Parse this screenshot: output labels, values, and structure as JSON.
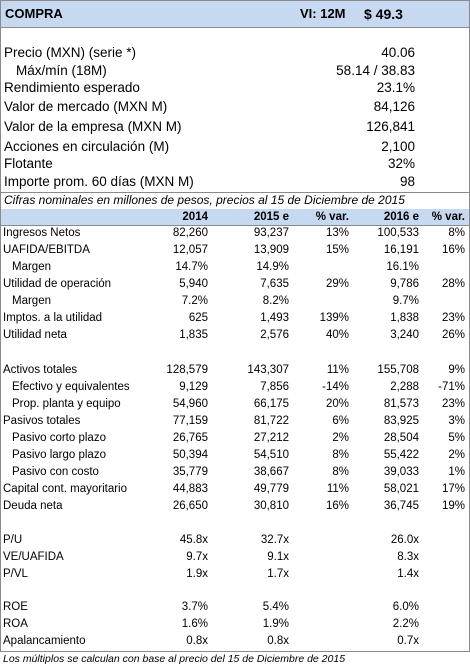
{
  "header": {
    "rating": "COMPRA",
    "target": "VI: 12M",
    "price": "$ 49.3"
  },
  "summary": [
    [
      "Precio (MXN) (serie *)",
      "40.06"
    ],
    [
      "Máx/mín (18M)",
      "58.14 / 38.83"
    ],
    [
      "Rendimiento esperado",
      "23.1%"
    ],
    [
      "Valor de mercado (MXN M)",
      "84,126"
    ],
    [
      "Valor de la empresa (MXN M)",
      "126,841"
    ],
    [
      "Acciones en circulación (M)",
      "2,100"
    ],
    [
      "Flotante",
      "32%"
    ],
    [
      "Importe prom. 60 días (MXN M)",
      "98"
    ]
  ],
  "note": "Cifras nominales en millones de pesos, precios al 15 de Diciembre de 2015",
  "table": {
    "columns": [
      "2014",
      "2015 e",
      "% var.",
      "2016 e",
      "% var."
    ],
    "groups": [
      [
        [
          "Ingresos Netos",
          "82,260",
          "93,237",
          "13%",
          "100,533",
          "8%"
        ],
        [
          "UAFIDA/EBITDA",
          "12,057",
          "13,909",
          "15%",
          "16,191",
          "16%"
        ],
        [
          "Margen",
          "14.7%",
          "14.9%",
          null,
          "16.1%",
          null
        ],
        [
          "Utilidad de operación",
          "5,940",
          "7,635",
          "29%",
          "9,786",
          "28%"
        ],
        [
          "Margen",
          "7.2%",
          "8.2%",
          null,
          "9.7%",
          null
        ],
        [
          "Imptos. a la utilidad",
          "625",
          "1,493",
          "139%",
          "1,838",
          "23%"
        ],
        [
          "Utilidad neta",
          "1,835",
          "2,576",
          "40%",
          "3,240",
          "26%"
        ]
      ],
      [
        [
          "Activos totales",
          "128,579",
          "143,307",
          "11%",
          "155,708",
          "9%"
        ],
        [
          "Efectivo y equivalentes",
          "9,129",
          "7,856",
          "-14%",
          "2,288",
          "-71%"
        ],
        [
          "Prop. planta y equipo",
          "54,960",
          "66,175",
          "20%",
          "81,573",
          "23%"
        ],
        [
          "Pasivos totales",
          "77,159",
          "81,722",
          "6%",
          "83,925",
          "3%"
        ],
        [
          "Pasivo corto plazo",
          "26,765",
          "27,212",
          "2%",
          "28,504",
          "5%"
        ],
        [
          "Pasivo largo plazo",
          "50,394",
          "54,510",
          "8%",
          "55,422",
          "2%"
        ],
        [
          "Pasivo con costo",
          "35,779",
          "38,667",
          "8%",
          "39,033",
          "1%"
        ],
        [
          "Capital cont. mayoritario",
          "44,883",
          "49,779",
          "11%",
          "58,021",
          "17%"
        ],
        [
          "Deuda neta",
          "26,650",
          "30,810",
          "16%",
          "36,745",
          "19%"
        ]
      ],
      [
        [
          "P/U",
          "45.8x",
          "32.7x",
          null,
          "26.0x",
          null
        ],
        [
          "VE/UAFIDA",
          "9.7x",
          "9.1x",
          null,
          "8.3x",
          null
        ],
        [
          "P/VL",
          "1.9x",
          "1.7x",
          null,
          "1.4x",
          null
        ]
      ],
      [
        [
          "ROE",
          "3.7%",
          "5.4%",
          null,
          "6.0%",
          null
        ],
        [
          "ROA",
          "1.6%",
          "1.9%",
          null,
          "2.2%",
          null
        ],
        [
          "Apalancamiento",
          "0.8x",
          "0.8x",
          null,
          "0.7x",
          null
        ]
      ]
    ]
  },
  "footnote": "Los múltiplos se calculan con base al precio del 15 de Diciembre de 2015"
}
